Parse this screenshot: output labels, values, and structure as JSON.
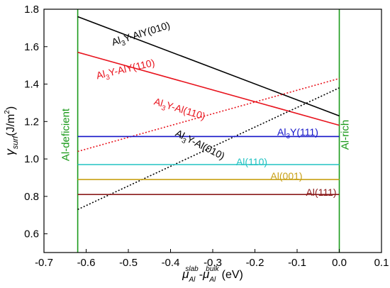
{
  "chart_data": {
    "type": "line",
    "xlabel": "μ_Al^slab - μ_Al^bulk (eV)",
    "xlabel_parts": {
      "mu": "μ",
      "sub": "Al",
      "sup_slab": "slab",
      "sup_bulk": "bulk",
      "minus": "-",
      "unit": "(eV)"
    },
    "ylabel": "γsurf(J/m²)",
    "ylabel_parts": {
      "gamma": "γ",
      "sub": "surf",
      "unit": "(J/m",
      "sup": "2",
      "close": ")"
    },
    "xlim": [
      -0.7,
      0.1
    ],
    "ylim": [
      0.5,
      1.8
    ],
    "xticks": [
      -0.7,
      -0.6,
      -0.5,
      -0.4,
      -0.3,
      -0.2,
      -0.1,
      0.0,
      0.1
    ],
    "xtick_labels": [
      "-0.7",
      "-0.6",
      "-0.5",
      "-0.4",
      "-0.3",
      "-0.2",
      "-0.1",
      "0.0",
      "0.1"
    ],
    "yticks": [
      0.6,
      0.8,
      1.0,
      1.2,
      1.4,
      1.6,
      1.8
    ],
    "ytick_labels": [
      "0.6",
      "0.8",
      "1.0",
      "1.2",
      "1.4",
      "1.6",
      "1.8"
    ],
    "grid": false,
    "legend": "none",
    "vertical_lines": [
      {
        "x": -0.62,
        "label": "Al-deficient",
        "color": "#1a9a1a"
      },
      {
        "x": 0.0,
        "label": "Al-rich",
        "color": "#1a9a1a"
      }
    ],
    "series": [
      {
        "name": "Al3Y-AlY(010)",
        "label_main": "Al",
        "label_sub": "3",
        "label_rest": "Y-AlY(010)",
        "color": "#000000",
        "dash": "solid",
        "x": [
          -0.62,
          0.0
        ],
        "y": [
          1.76,
          1.23
        ]
      },
      {
        "name": "Al3Y-AlY(110)",
        "label_main": "Al",
        "label_sub": "3",
        "label_rest": "Y-AlY(110)",
        "color": "#e8141e",
        "dash": "solid",
        "x": [
          -0.62,
          0.0
        ],
        "y": [
          1.57,
          1.18
        ]
      },
      {
        "name": "Al3Y-Al(110)",
        "label_main": "Al",
        "label_sub": "3",
        "label_rest": "Y-Al(110)",
        "color": "#e8141e",
        "dash": "dotted",
        "x": [
          -0.62,
          0.0
        ],
        "y": [
          1.04,
          1.43
        ]
      },
      {
        "name": "Al3Y-Al(010)",
        "label_main": "Al",
        "label_sub": "3",
        "label_rest": "Y-Al(010)",
        "color": "#000000",
        "dash": "dotted",
        "x": [
          -0.62,
          0.0
        ],
        "y": [
          0.73,
          1.38
        ]
      },
      {
        "name": "Al3Y(111)",
        "label_main": "Al",
        "label_sub": "3",
        "label_rest": "Y(111)",
        "color": "#1414c8",
        "dash": "solid",
        "x": [
          -0.62,
          0.0
        ],
        "y": [
          1.12,
          1.12
        ]
      },
      {
        "name": "Al(110)",
        "label_main": "Al(110)",
        "label_sub": "",
        "label_rest": "",
        "color": "#22c3c3",
        "dash": "solid",
        "x": [
          -0.62,
          0.0
        ],
        "y": [
          0.97,
          0.97
        ]
      },
      {
        "name": "Al(001)",
        "label_main": "Al(001)",
        "label_sub": "",
        "label_rest": "",
        "color": "#c8a014",
        "dash": "solid",
        "x": [
          -0.62,
          0.0
        ],
        "y": [
          0.89,
          0.89
        ]
      },
      {
        "name": "Al(111)",
        "label_main": "Al(111)",
        "label_sub": "",
        "label_rest": "",
        "color": "#8b1a1a",
        "dash": "solid",
        "x": [
          -0.62,
          0.0
        ],
        "y": [
          0.81,
          0.81
        ]
      }
    ]
  }
}
